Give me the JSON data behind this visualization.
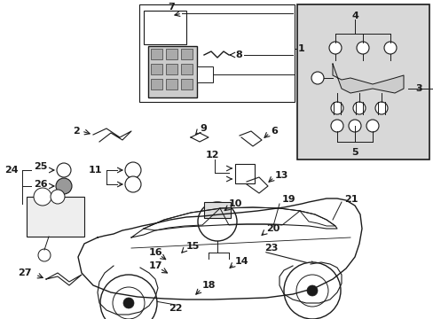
{
  "bg_color": "#ffffff",
  "lc": "#1a1a1a",
  "pc": "#1a1a1a",
  "box_fill": "#d8d8d8",
  "figsize": [
    4.89,
    3.6
  ],
  "dpi": 100,
  "xlim": [
    0,
    489
  ],
  "ylim": [
    0,
    360
  ]
}
